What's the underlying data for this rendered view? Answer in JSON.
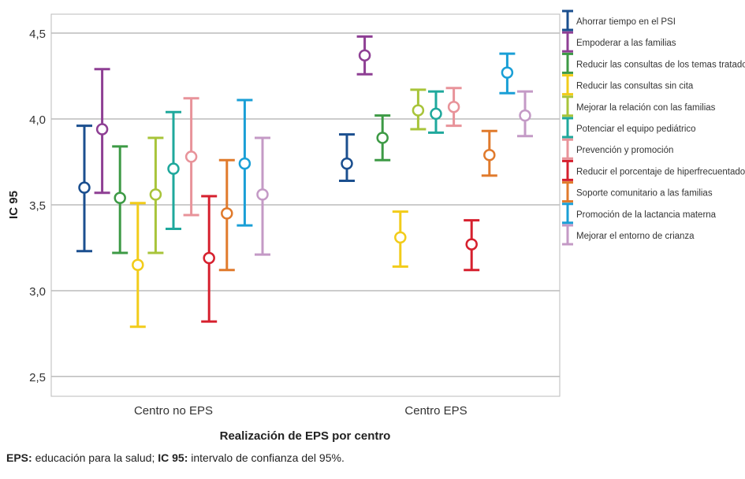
{
  "chart_data": {
    "type": "errorbar",
    "title": "",
    "xlabel": "Realización de EPS por centro",
    "ylabel": "IC 95",
    "ylim": [
      2.385,
      4.61
    ],
    "yticks": [
      "2,5",
      "3,0",
      "3,5",
      "4,0",
      "4,5"
    ],
    "ytick_values": [
      2.5,
      3.0,
      3.5,
      4.0,
      4.5
    ],
    "grid": "horizontal",
    "legend_position": "right",
    "categories": [
      "Centro no EPS",
      "Centro EPS"
    ],
    "series": [
      {
        "name": "Ahorrar tiempo en el PSI",
        "color": "#1b4f8f",
        "mean": [
          3.6,
          3.74
        ],
        "lower": [
          3.23,
          3.64
        ],
        "upper": [
          3.96,
          3.91
        ]
      },
      {
        "name": "Empoderar a las familias",
        "color": "#8e3f94",
        "mean": [
          3.94,
          4.37
        ],
        "lower": [
          3.57,
          4.26
        ],
        "upper": [
          4.29,
          4.48
        ]
      },
      {
        "name": "Reducir las consultas de los temas tratados",
        "color": "#3d9a45",
        "mean": [
          3.54,
          3.89
        ],
        "lower": [
          3.22,
          3.76
        ],
        "upper": [
          3.84,
          4.02
        ]
      },
      {
        "name": "Reducir las consultas sin cita",
        "color": "#f2cc1a",
        "mean": [
          3.15,
          3.31
        ],
        "lower": [
          2.79,
          3.14
        ],
        "upper": [
          3.51,
          3.46
        ]
      },
      {
        "name": "Mejorar la relación con las familias",
        "color": "#a8c43a",
        "mean": [
          3.56,
          4.05
        ],
        "lower": [
          3.22,
          3.94
        ],
        "upper": [
          3.89,
          4.17
        ]
      },
      {
        "name": "Potenciar el equipo pediátrico",
        "color": "#1fa89c",
        "mean": [
          3.71,
          4.03
        ],
        "lower": [
          3.36,
          3.92
        ],
        "upper": [
          4.04,
          4.16
        ]
      },
      {
        "name": "Prevención y promoción",
        "color": "#e8939a",
        "mean": [
          3.78,
          4.07
        ],
        "lower": [
          3.44,
          3.96
        ],
        "upper": [
          4.12,
          4.18
        ]
      },
      {
        "name": "Reducir el porcentaje de hiperfrecuentadores",
        "color": "#d6202e",
        "mean": [
          3.19,
          3.27
        ],
        "lower": [
          2.82,
          3.12
        ],
        "upper": [
          3.55,
          3.41
        ]
      },
      {
        "name": "Soporte comunitario a las familias",
        "color": "#e07a2c",
        "mean": [
          3.45,
          3.79
        ],
        "lower": [
          3.12,
          3.67
        ],
        "upper": [
          3.76,
          3.93
        ]
      },
      {
        "name": "Promoción de la lactancia materna",
        "color": "#1a9fd6",
        "mean": [
          3.74,
          4.27
        ],
        "lower": [
          3.38,
          4.15
        ],
        "upper": [
          4.11,
          4.38
        ]
      },
      {
        "name": "Mejorar el entorno de crianza",
        "color": "#c49ac6",
        "mean": [
          3.56,
          4.02
        ],
        "lower": [
          3.21,
          3.9
        ],
        "upper": [
          3.89,
          4.16
        ]
      }
    ]
  },
  "note": {
    "abbr1": "EPS:",
    "text1": " educación para la salud; ",
    "abbr2": "IC 95:",
    "text2": " intervalo de confianza del 95%."
  }
}
